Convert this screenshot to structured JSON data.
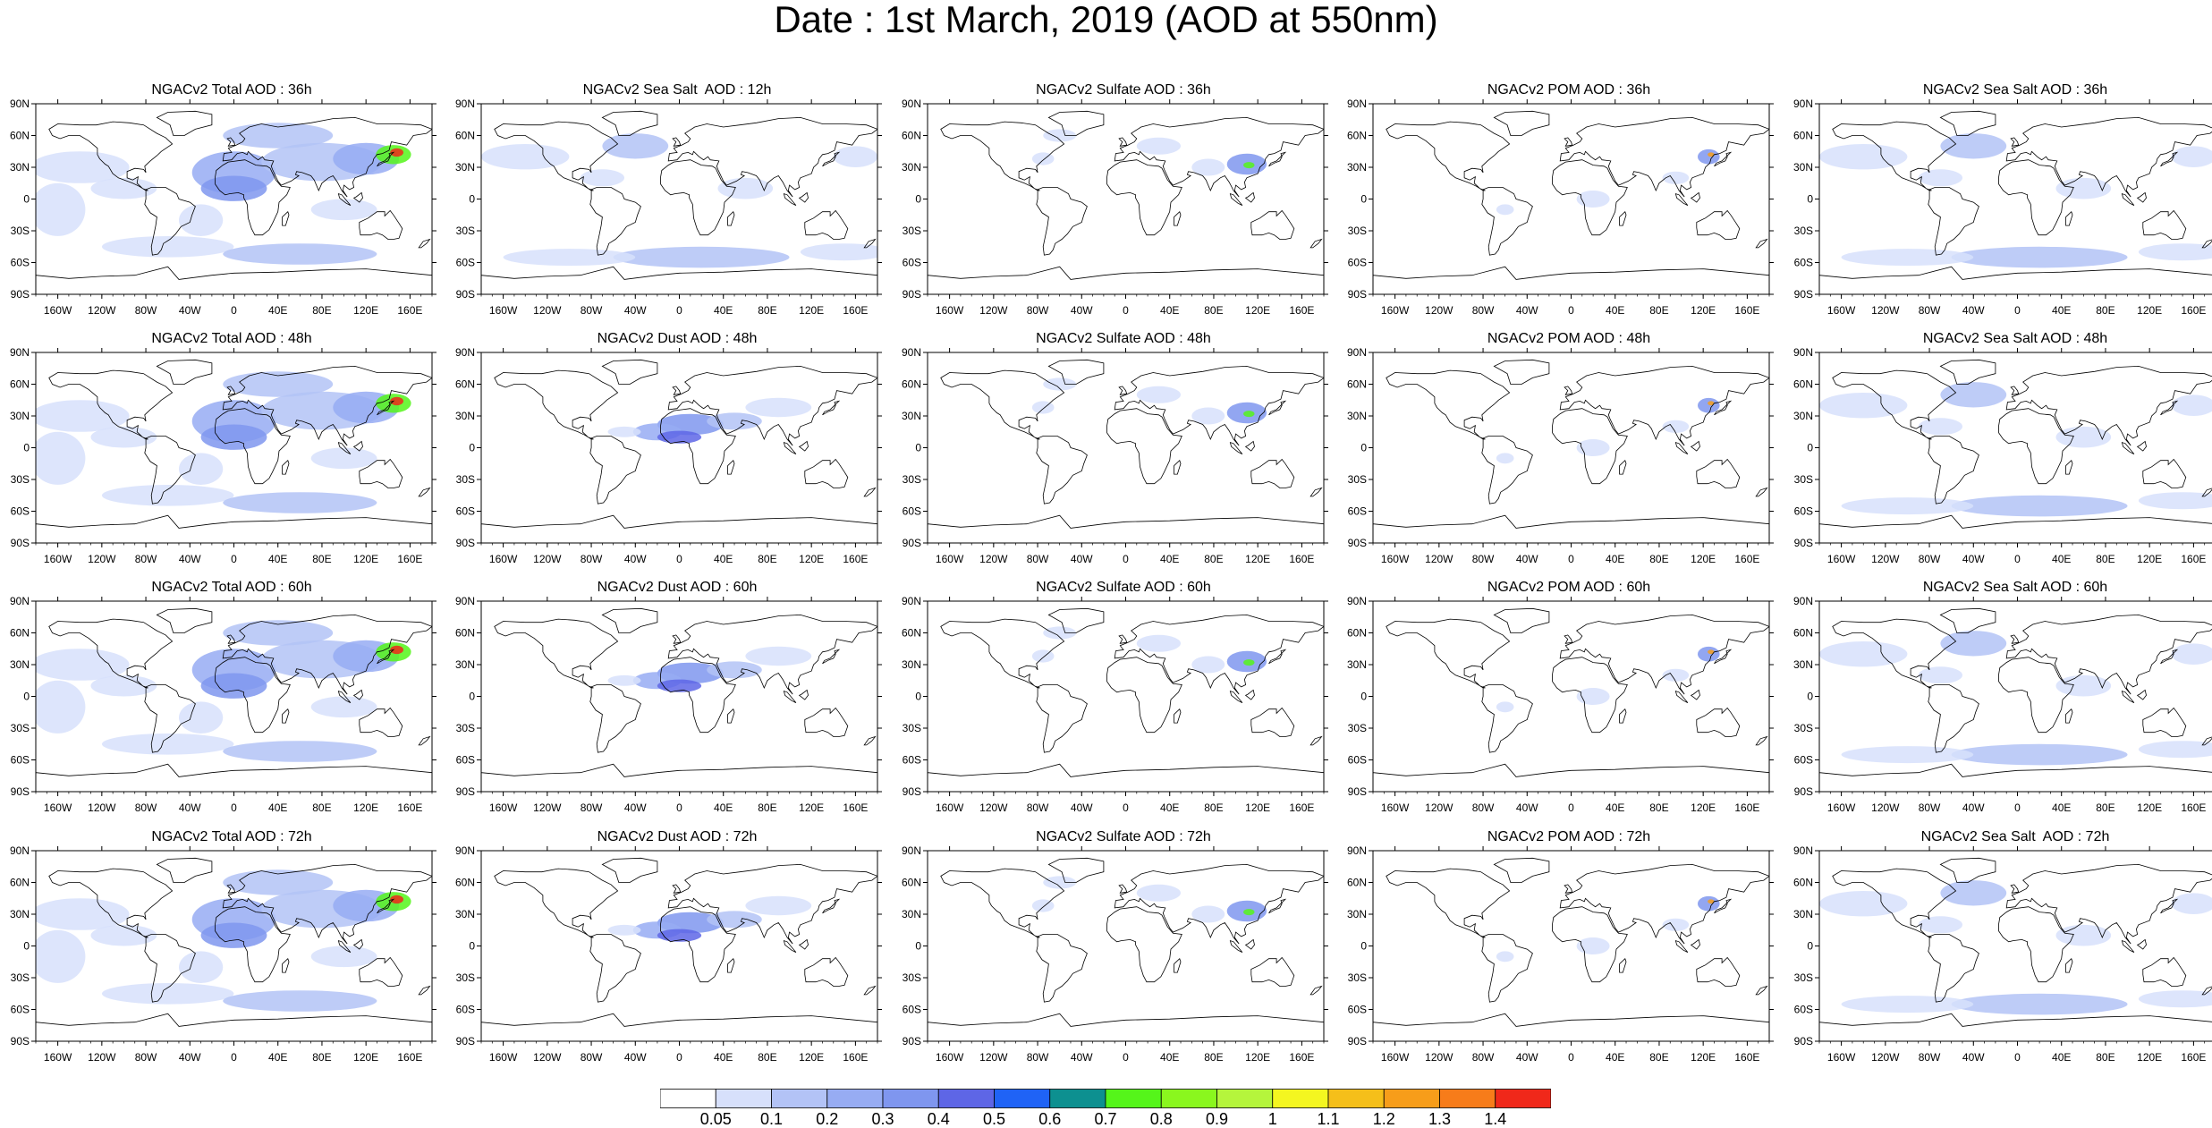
{
  "title": "Date : 1st March, 2019 (AOD at 550nm)",
  "lat_labels": [
    "90N",
    "60N",
    "30N",
    "0",
    "30S",
    "60S",
    "90S"
  ],
  "lon_labels": [
    "160W",
    "120W",
    "80W",
    "40W",
    "0",
    "40E",
    "80E",
    "120E",
    "160E"
  ],
  "panels": [
    {
      "title": "NGACv2 Total AOD : 36h",
      "variable": "Total AOD",
      "hour": 36
    },
    {
      "title": "NGACv2 Sea Salt  AOD : 12h",
      "variable": "Sea Salt AOD",
      "hour": 12
    },
    {
      "title": "NGACv2 Sulfate AOD : 36h",
      "variable": "Sulfate AOD",
      "hour": 36
    },
    {
      "title": "NGACv2 POM AOD : 36h",
      "variable": "POM AOD",
      "hour": 36
    },
    {
      "title": "NGACv2 Sea Salt AOD : 36h",
      "variable": "Sea Salt AOD",
      "hour": 36
    },
    {
      "title": "NGACv2 Total AOD : 48h",
      "variable": "Total AOD",
      "hour": 48
    },
    {
      "title": "NGACv2 Dust AOD : 48h",
      "variable": "Dust AOD",
      "hour": 48
    },
    {
      "title": "NGACv2 Sulfate AOD : 48h",
      "variable": "Sulfate AOD",
      "hour": 48
    },
    {
      "title": "NGACv2 POM AOD : 48h",
      "variable": "POM AOD",
      "hour": 48
    },
    {
      "title": "NGACv2 Sea Salt AOD : 48h",
      "variable": "Sea Salt AOD",
      "hour": 48
    },
    {
      "title": "NGACv2 Total AOD : 60h",
      "variable": "Total AOD",
      "hour": 60
    },
    {
      "title": "NGACv2 Dust AOD : 60h",
      "variable": "Dust AOD",
      "hour": 60
    },
    {
      "title": "NGACv2 Sulfate AOD : 60h",
      "variable": "Sulfate AOD",
      "hour": 60
    },
    {
      "title": "NGACv2 POM AOD : 60h",
      "variable": "POM AOD",
      "hour": 60
    },
    {
      "title": "NGACv2 Sea Salt AOD : 60h",
      "variable": "Sea Salt AOD",
      "hour": 60
    },
    {
      "title": "NGACv2 Total AOD : 72h",
      "variable": "Total AOD",
      "hour": 72
    },
    {
      "title": "NGACv2 Dust AOD : 72h",
      "variable": "Dust AOD",
      "hour": 72
    },
    {
      "title": "NGACv2 Sulfate AOD : 72h",
      "variable": "Sulfate AOD",
      "hour": 72
    },
    {
      "title": "NGACv2 POM AOD : 72h",
      "variable": "POM AOD",
      "hour": 72
    },
    {
      "title": "NGACv2 Sea Salt  AOD : 72h",
      "variable": "Sea Salt AOD",
      "hour": 72
    }
  ],
  "colorbar": {
    "labels": [
      "0.05",
      "0.1",
      "0.2",
      "0.3",
      "0.4",
      "0.5",
      "0.6",
      "0.7",
      "0.8",
      "0.9",
      "1",
      "1.1",
      "1.2",
      "1.3",
      "1.4"
    ],
    "colors": [
      "#ffffff",
      "#d7e0fb",
      "#b3c3f6",
      "#97acf3",
      "#7f96ef",
      "#5e66e6",
      "#1f63f6",
      "#0d9090",
      "#55f51a",
      "#8af71e",
      "#b5f53c",
      "#f4f620",
      "#f5bf1a",
      "#f79d1a",
      "#f77c1a",
      "#f0281a"
    ]
  },
  "map_colors": {
    "land_line": "#000000",
    "haze_light": "#d7e0fb",
    "haze_mid": "#b3c3f6",
    "haze_strong": "#97acf3",
    "haze_dense": "#7f96ef",
    "haze_peak": "#5e66e6",
    "hot_green": "#55f51a",
    "hot_yellow": "#f4f620",
    "hot_orange": "#f79d1a",
    "hot_red": "#f0281a"
  }
}
